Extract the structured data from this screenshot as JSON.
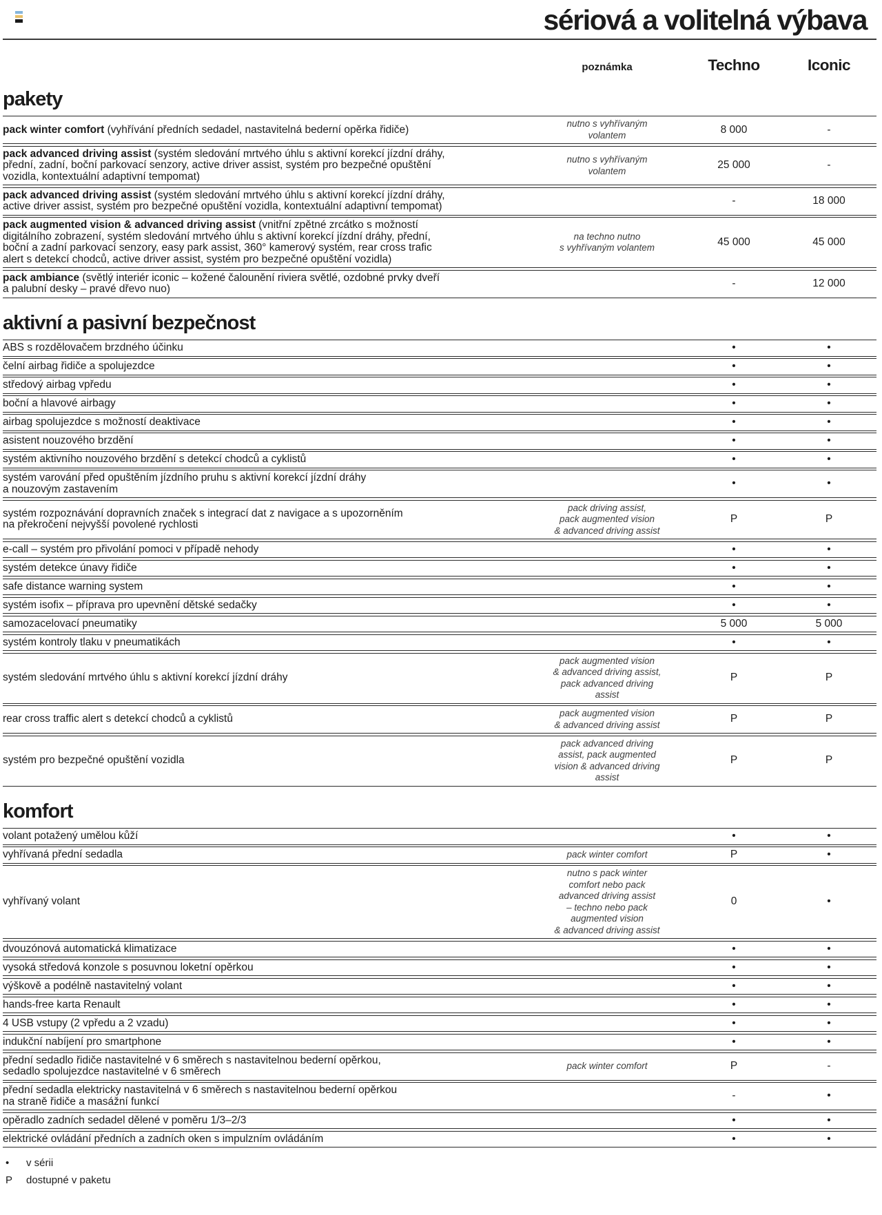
{
  "page": {
    "title": "sériová a volitelná výbava"
  },
  "logo_colors": [
    "#85b6dc",
    "#e9c06a",
    "#1b1b1b"
  ],
  "columns": {
    "note": "poznámka",
    "techno": "Techno",
    "iconic": "Iconic"
  },
  "sections": [
    {
      "title": "pakety",
      "rows": [
        {
          "bold": "pack winter comfort",
          "rest": " (vyhřívání předních sedadel, nastavitelná bederní opěrka řidiče)",
          "note": "nutno s vyhřívaným\nvolantem",
          "techno": "8 000",
          "iconic": "-"
        },
        {
          "bold": "pack advanced driving assist",
          "rest": " (systém sledování mrtvého úhlu s aktivní korekcí jízdní dráhy,\npřední, zadní, boční parkovací senzory, active driver assist, systém pro bezpečné opuštění\nvozidla, kontextuální adaptivní tempomat)",
          "note": "nutno s vyhřívaným\nvolantem",
          "techno": "25 000",
          "iconic": "-"
        },
        {
          "bold": "pack advanced driving assist",
          "rest": " (systém sledování mrtvého úhlu s aktivní korekcí jízdní dráhy,\nactive driver assist, systém pro bezpečné opuštění vozidla, kontextuální adaptivní tempomat)",
          "note": "",
          "techno": "-",
          "iconic": "18 000"
        },
        {
          "bold": "pack augmented vision & advanced driving assist",
          "rest": " (vnitřní zpětné zrcátko s možností\ndigitálního zobrazení, systém sledování mrtvého úhlu s aktivní korekcí jízdní dráhy, přední,\nboční a zadní parkovací senzory, easy park assist, 360° kamerový systém, rear cross trafic\nalert s detekcí chodců, active driver assist, systém pro bezpečné opuštění vozidla)",
          "note": "na techno nutno\ns vyhřívaným volantem",
          "techno": "45 000",
          "iconic": "45 000"
        },
        {
          "bold": "pack ambiance",
          "rest": " (světlý interiér iconic – kožené čalounění riviera světlé, ozdobné prvky dveří\na palubní desky – pravé dřevo nuo)",
          "note": "",
          "techno": "-",
          "iconic": "12 000"
        }
      ]
    },
    {
      "title": "aktivní a pasivní bezpečnost",
      "rows": [
        {
          "bold": "",
          "rest": "ABS s rozdělovačem brzdného účinku",
          "note": "",
          "techno": "•",
          "iconic": "•"
        },
        {
          "bold": "",
          "rest": "čelní airbag řidiče a spolujezdce",
          "note": "",
          "techno": "•",
          "iconic": "•"
        },
        {
          "bold": "",
          "rest": "středový airbag vpředu",
          "note": "",
          "techno": "•",
          "iconic": "•"
        },
        {
          "bold": "",
          "rest": "boční a hlavové airbagy",
          "note": "",
          "techno": "•",
          "iconic": "•"
        },
        {
          "bold": "",
          "rest": "airbag spolujezdce s možností deaktivace",
          "note": "",
          "techno": "•",
          "iconic": "•"
        },
        {
          "bold": "",
          "rest": "asistent nouzového brzdění",
          "note": "",
          "techno": "•",
          "iconic": "•"
        },
        {
          "bold": "",
          "rest": "systém aktivního nouzového brzdění s detekcí chodců a cyklistů",
          "note": "",
          "techno": "•",
          "iconic": "•"
        },
        {
          "bold": "",
          "rest": "systém varování před opuštěním jízdního pruhu s aktivní korekcí jízdní dráhy\na nouzovým zastavením",
          "note": "",
          "techno": "•",
          "iconic": "•"
        },
        {
          "bold": "",
          "rest": "systém rozpoznávání dopravních značek s integrací dat z navigace a s upozorněním\nna překročení nejvyšší povolené rychlosti",
          "note": "pack driving assist,\npack augmented vision\n& advanced driving assist",
          "techno": "P",
          "iconic": "P"
        },
        {
          "bold": "",
          "rest": "e-call – systém pro přivolání pomoci v případě nehody",
          "note": "",
          "techno": "•",
          "iconic": "•"
        },
        {
          "bold": "",
          "rest": "systém detekce únavy řidiče",
          "note": "",
          "techno": "•",
          "iconic": "•"
        },
        {
          "bold": "",
          "rest": "safe distance warning system",
          "note": "",
          "techno": "•",
          "iconic": "•"
        },
        {
          "bold": "",
          "rest": "systém isofix – příprava pro upevnění dětské sedačky",
          "note": "",
          "techno": "•",
          "iconic": "•"
        },
        {
          "bold": "",
          "rest": "samozacelovací pneumatiky",
          "note": "",
          "techno": "5 000",
          "iconic": "5 000"
        },
        {
          "bold": "",
          "rest": "systém kontroly tlaku v pneumatikách",
          "note": "",
          "techno": "•",
          "iconic": "•"
        },
        {
          "bold": "",
          "rest": "systém sledování mrtvého úhlu s aktivní korekcí jízdní dráhy",
          "note": "pack augmented vision\n& advanced driving assist,\npack advanced driving\nassist",
          "techno": "P",
          "iconic": "P"
        },
        {
          "bold": "",
          "rest": "rear cross traffic alert s detekcí chodců a cyklistů",
          "note": "pack augmented vision\n& advanced driving assist",
          "techno": "P",
          "iconic": "P"
        },
        {
          "bold": "",
          "rest": "systém pro bezpečné opuštění vozidla",
          "note": "pack advanced driving\nassist, pack augmented\nvision & advanced driving\nassist",
          "techno": "P",
          "iconic": "P"
        }
      ]
    },
    {
      "title": "komfort",
      "rows": [
        {
          "bold": "",
          "rest": "volant potažený umělou kůží",
          "note": "",
          "techno": "•",
          "iconic": "•"
        },
        {
          "bold": "",
          "rest": "vyhřívaná přední sedadla",
          "note": "pack winter comfort",
          "techno": "P",
          "iconic": "•"
        },
        {
          "bold": "",
          "rest": "vyhřívaný volant",
          "note": "nutno s pack winter\ncomfort nebo pack\nadvanced driving assist\n– techno nebo pack\naugmented vision\n& advanced driving assist",
          "techno": "0",
          "iconic": "•"
        },
        {
          "bold": "",
          "rest": "dvouzónová automatická klimatizace",
          "note": "",
          "techno": "•",
          "iconic": "•"
        },
        {
          "bold": "",
          "rest": "vysoká středová konzole s posuvnou loketní opěrkou",
          "note": "",
          "techno": "•",
          "iconic": "•"
        },
        {
          "bold": "",
          "rest": "výškově a podélně nastavitelný volant",
          "note": "",
          "techno": "•",
          "iconic": "•"
        },
        {
          "bold": "",
          "rest": "hands-free karta Renault",
          "note": "",
          "techno": "•",
          "iconic": "•"
        },
        {
          "bold": "",
          "rest": "4 USB vstupy (2 vpředu a 2 vzadu)",
          "note": "",
          "techno": "•",
          "iconic": "•"
        },
        {
          "bold": "",
          "rest": "indukční nabíjení pro smartphone",
          "note": "",
          "techno": "•",
          "iconic": "•"
        },
        {
          "bold": "",
          "rest": "přední sedadlo řidiče nastavitelné v 6 směrech s nastavitelnou bederní opěrkou,\nsedadlo spolujezdce nastavitelné v 6 směrech",
          "note": "pack winter comfort",
          "techno": "P",
          "iconic": "-"
        },
        {
          "bold": "",
          "rest": "přední sedadla elektricky nastavitelná v 6 směrech s nastavitelnou bederní opěrkou\nna straně řidiče a masážní funkcí",
          "note": "",
          "techno": "-",
          "iconic": "•"
        },
        {
          "bold": "",
          "rest": "opěradlo zadních sedadel dělené v poměru 1/3–2/3",
          "note": "",
          "techno": "•",
          "iconic": "•"
        },
        {
          "bold": "",
          "rest": "elektrické ovládání předních a zadních oken s impulzním ovládáním",
          "note": "",
          "techno": "•",
          "iconic": "•"
        }
      ]
    }
  ],
  "legend": [
    {
      "symbol": "•",
      "label": "v sérii"
    },
    {
      "symbol": "P",
      "label": "dostupné v paketu"
    }
  ]
}
